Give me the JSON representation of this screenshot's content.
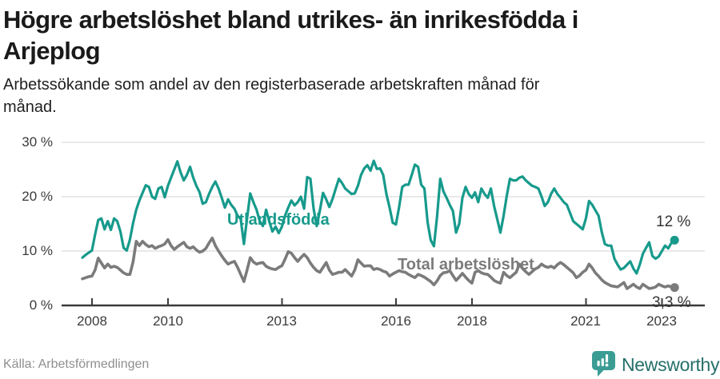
{
  "header": {
    "title_lines": [
      "Högre arbetslöshet bland utrikes- än inrikesfödda i",
      "Arjeplog"
    ],
    "subtitle_lines": [
      "Arbetssökande som andel av den registerbaserade arbetskraften månad för",
      "månad."
    ]
  },
  "footer": {
    "source": "Källa: Arbetsförmedlingen",
    "logo_text": "Newsworthy",
    "logo_icon": "speech-bubble-bar-chart"
  },
  "colors": {
    "series_utlandsfodda": "#179a8c",
    "series_total": "#7b7b7b",
    "gridline": "#e2e2e2",
    "axis": "#3a3a3a",
    "logo_bubble": "#3b9c94",
    "logo_text": "#256f6a"
  },
  "chart_data": {
    "type": "line",
    "unit": "%",
    "frequency": "monthly",
    "start_month": "2007-10",
    "end_month": "2023-05",
    "ylim": [
      0,
      30
    ],
    "grid": true,
    "y_tick_labels": [
      "30 %",
      "20 %",
      "10 %",
      "0 %"
    ],
    "x_tick_labels": [
      "2008",
      "2010",
      "2013",
      "2016",
      "2018",
      "2021",
      "2023"
    ],
    "series": [
      {
        "name": "Utlandsfödda",
        "color": "#179a8c",
        "end_label": "12 %",
        "last_value": 12.0,
        "values": [
          8.8,
          9.3,
          9.7,
          10.1,
          13.0,
          15.7,
          16.0,
          14.0,
          15.5,
          13.9,
          16.0,
          15.5,
          13.6,
          10.6,
          10.1,
          12.1,
          15.1,
          17.6,
          19.3,
          20.7,
          22.1,
          21.8,
          20.0,
          19.6,
          21.5,
          21.8,
          19.9,
          22.0,
          23.5,
          25.0,
          26.5,
          24.5,
          23.0,
          24.0,
          25.5,
          23.5,
          22.0,
          20.8,
          18.7,
          19.0,
          20.5,
          21.8,
          22.8,
          21.5,
          19.8,
          18.0,
          19.5,
          18.5,
          17.8,
          16.5,
          15.9,
          11.3,
          16.0,
          20.6,
          19.0,
          17.6,
          15.5,
          14.6,
          17.6,
          15.5,
          13.6,
          14.5,
          13.3,
          14.5,
          16.5,
          18.0,
          19.3,
          18.4,
          19.0,
          20.0,
          17.8,
          23.6,
          23.3,
          17.8,
          14.6,
          17.5,
          20.7,
          19.5,
          18.1,
          19.6,
          21.5,
          23.3,
          22.5,
          21.5,
          21.0,
          20.5,
          20.6,
          22.0,
          24.0,
          25.2,
          25.8,
          24.8,
          26.6,
          25.1,
          25.2,
          24.0,
          20.5,
          18.0,
          15.2,
          14.9,
          18.0,
          21.8,
          22.2,
          22.2,
          24.0,
          25.9,
          25.5,
          22.2,
          21.5,
          15.3,
          12.0,
          10.9,
          16.3,
          23.3,
          21.0,
          19.8,
          18.5,
          17.4,
          13.4,
          15.0,
          19.8,
          21.8,
          20.5,
          19.8,
          20.8,
          19.0,
          21.5,
          20.5,
          19.8,
          21.5,
          18.3,
          15.9,
          13.4,
          16.5,
          20.1,
          23.3,
          23.0,
          23.0,
          23.5,
          23.7,
          23.0,
          22.5,
          22.0,
          21.8,
          21.5,
          20.0,
          18.3,
          19.0,
          20.5,
          21.5,
          20.5,
          19.8,
          19.0,
          18.5,
          17.0,
          15.5,
          15.0,
          14.5,
          14.0,
          16.0,
          19.2,
          18.5,
          17.5,
          16.5,
          13.5,
          11.3,
          11.0,
          11.0,
          8.6,
          7.5,
          6.6,
          6.9,
          7.5,
          8.1,
          6.8,
          5.9,
          7.5,
          9.5,
          10.6,
          11.6,
          9.1,
          8.6,
          9.0,
          10.0,
          11.0,
          10.5,
          11.5,
          12.0
        ]
      },
      {
        "name": "Total arbetslöshet",
        "color": "#7b7b7b",
        "end_label": "3,3 %",
        "last_value": 3.3,
        "values": [
          4.9,
          5.1,
          5.3,
          5.4,
          6.5,
          8.7,
          7.8,
          6.9,
          7.6,
          7.0,
          7.2,
          7.0,
          6.5,
          6.0,
          5.7,
          5.7,
          8.0,
          11.8,
          11.0,
          11.8,
          11.2,
          10.8,
          11.0,
          10.5,
          10.8,
          11.0,
          11.3,
          12.1,
          11.0,
          10.3,
          10.8,
          11.2,
          11.6,
          10.8,
          10.5,
          10.8,
          10.2,
          9.8,
          10.0,
          10.5,
          11.5,
          12.4,
          11.0,
          10.0,
          9.1,
          8.3,
          7.6,
          7.9,
          8.1,
          7.0,
          5.7,
          4.4,
          6.5,
          8.8,
          8.0,
          7.6,
          7.8,
          7.9,
          7.2,
          6.9,
          6.7,
          6.6,
          7.0,
          7.3,
          8.5,
          9.9,
          9.6,
          8.8,
          8.1,
          8.8,
          9.4,
          8.8,
          7.8,
          7.0,
          6.4,
          6.1,
          7.0,
          7.9,
          6.5,
          5.7,
          5.9,
          6.1,
          6.1,
          6.6,
          6.0,
          5.4,
          6.5,
          8.4,
          7.8,
          7.2,
          7.3,
          7.3,
          6.6,
          6.8,
          6.6,
          6.3,
          6.1,
          5.4,
          5.8,
          6.1,
          6.4,
          6.2,
          6.1,
          5.7,
          5.4,
          5.1,
          5.7,
          5.5,
          5.2,
          4.8,
          4.4,
          3.8,
          4.5,
          5.5,
          6.0,
          6.1,
          6.4,
          5.5,
          4.6,
          5.2,
          5.9,
          5.2,
          4.6,
          4.1,
          6.1,
          6.4,
          6.0,
          5.8,
          5.7,
          5.2,
          4.6,
          4.3,
          4.1,
          6.1,
          5.5,
          5.1,
          5.6,
          6.1,
          7.6,
          6.8,
          6.2,
          5.7,
          6.2,
          6.7,
          7.0,
          7.6,
          7.2,
          7.0,
          7.2,
          6.9,
          7.5,
          7.9,
          7.5,
          7.0,
          6.5,
          6.0,
          5.1,
          5.5,
          6.1,
          6.5,
          7.6,
          6.9,
          6.0,
          5.4,
          4.7,
          4.2,
          3.9,
          3.6,
          3.5,
          3.4,
          3.8,
          4.2,
          3.1,
          3.5,
          3.9,
          3.4,
          3.1,
          3.9,
          3.5,
          3.1,
          3.2,
          3.4,
          3.9,
          3.6,
          3.4,
          3.6,
          3.4,
          3.3
        ]
      }
    ]
  }
}
